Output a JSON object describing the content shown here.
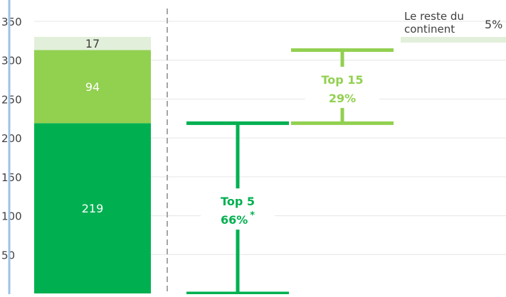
{
  "chart_data": {
    "type": "bar",
    "ylim": [
      0,
      350
    ],
    "yticks": [
      50,
      100,
      150,
      200,
      250,
      300,
      350
    ],
    "grid": true,
    "stack": [
      {
        "name": "",
        "value": 219,
        "label": "219",
        "color": "#00b050"
      },
      {
        "name": "",
        "value": 94,
        "label": "94",
        "color": "#92d050"
      },
      {
        "name": "",
        "value": 17,
        "label": "17",
        "color": "#e2efda"
      }
    ],
    "brackets": [
      {
        "label": "Top 5",
        "percent": "66%",
        "marker": "*",
        "from": 0,
        "to": 219,
        "color": "#00b050"
      },
      {
        "label": "Top 15",
        "percent": "29%",
        "from": 219,
        "to": 313,
        "color": "#92d050"
      }
    ],
    "legend_box": {
      "text_line1": "Le reste du",
      "text_line2": "continent",
      "percent": "5%",
      "color": "#e2efda"
    }
  },
  "colors": {
    "axis": "#9dc3e6",
    "grid": "#e6e6e6",
    "divider": "#a6a6a6",
    "label_dark": "#404040"
  }
}
